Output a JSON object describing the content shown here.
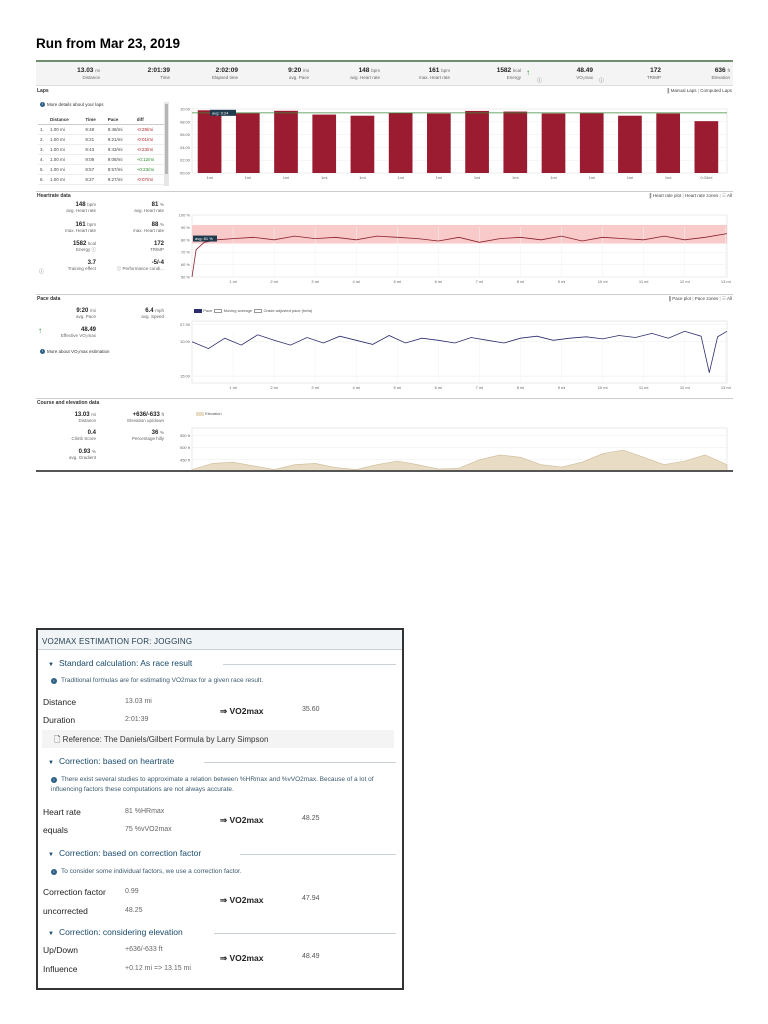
{
  "page_title": "Run from Mar 23, 2019",
  "summary": [
    {
      "value": "13.03",
      "unit": "mi",
      "label": "Distance"
    },
    {
      "value": "2:01:39",
      "unit": "",
      "label": "Time"
    },
    {
      "value": "2:02:09",
      "unit": "",
      "label": "Elapsed time"
    },
    {
      "value": "9:20",
      "unit": "/mi",
      "label": "avg. Pace"
    },
    {
      "value": "148",
      "unit": "bpm",
      "label": "avg. Heart rate"
    },
    {
      "value": "161",
      "unit": "bpm",
      "label": "max. Heart rate"
    },
    {
      "value": "1582",
      "unit": "kcal",
      "label": "Energy"
    },
    {
      "value": "48.49",
      "unit": "",
      "label": "VO₂max"
    },
    {
      "value": "172",
      "unit": "",
      "label": "TRIMP"
    },
    {
      "value": "636",
      "unit": "ft",
      "label": "Elevation"
    }
  ],
  "laps": {
    "title": "Laps",
    "more_link": "More details about your laps",
    "tabs": [
      "Manual Laps",
      "Computed Laps"
    ],
    "headers": [
      "Distance",
      "Time",
      "Pace",
      "diff"
    ],
    "rows": [
      {
        "n": "1.",
        "dist": "1.00 mi",
        "time": "9:48",
        "pace": "9:48/mi",
        "diff": "-0:28/mi",
        "sign": "neg"
      },
      {
        "n": "2.",
        "dist": "1.00 mi",
        "time": "9:21",
        "pace": "9:21/mi",
        "diff": "-0:01/mi",
        "sign": "neg"
      },
      {
        "n": "3.",
        "dist": "1.00 mi",
        "time": "9:43",
        "pace": "9:43/mi",
        "diff": "-0:23/mi",
        "sign": "neg"
      },
      {
        "n": "4.",
        "dist": "1.00 mi",
        "time": "9:08",
        "pace": "9:08/mi",
        "diff": "+0:12/mi",
        "sign": "pos"
      },
      {
        "n": "5.",
        "dist": "1.00 mi",
        "time": "8:57",
        "pace": "8:57/mi",
        "diff": "+0:23/mi",
        "sign": "pos"
      },
      {
        "n": "6.",
        "dist": "1.00 mi",
        "time": "9:27",
        "pace": "9:27/mi",
        "diff": "-0:07/mi",
        "sign": "neg"
      }
    ],
    "avg_label": "avg: 9:24"
  },
  "heartrate": {
    "title": "Heartrate data",
    "tabs": [
      "Heart rate plot",
      "Heart rate zones",
      "All"
    ],
    "avg_label": "avg: 81 %",
    "stats": [
      {
        "value": "148",
        "unit": "bpm",
        "label": "avg. Heart rate"
      },
      {
        "value": "81",
        "unit": "%",
        "label": "avg. Heart rate"
      },
      {
        "value": "161",
        "unit": "bpm",
        "label": "max. Heart rate"
      },
      {
        "value": "88",
        "unit": "%",
        "label": "max. Heart rate"
      },
      {
        "value": "1582",
        "unit": "kcal",
        "label": "Energy"
      },
      {
        "value": "172",
        "unit": "",
        "label": "TRIMP"
      },
      {
        "value": "3.7",
        "unit": "",
        "label": "Training effect"
      },
      {
        "value": "-5/-4",
        "unit": "",
        "label": "Performance condi..."
      }
    ]
  },
  "pace": {
    "title": "Pace data",
    "tabs": [
      "Pace plot",
      "Pace zones",
      "All"
    ],
    "legend": [
      "Pace",
      "Moving average",
      "Grade adjusted pace (beta)"
    ],
    "stats": [
      {
        "value": "9:20",
        "unit": "/mi",
        "label": "avg. Pace"
      },
      {
        "value": "6.4",
        "unit": "mph",
        "label": "avg. Speed"
      },
      {
        "value": "48.49",
        "unit": "",
        "label": "Effective VO₂max"
      }
    ],
    "more_link": "More about VO₂max estimation"
  },
  "course": {
    "title": "Course and elevation data",
    "legend": [
      "Elevation"
    ],
    "stats": [
      {
        "value": "13.03",
        "unit": "mi",
        "label": "Distance"
      },
      {
        "value": "+636/-633",
        "unit": "ft",
        "label": "Elevation up/down"
      },
      {
        "value": "0.4",
        "unit": "",
        "label": "Climb Score"
      },
      {
        "value": "36",
        "unit": "%",
        "label": "Percentage hilly"
      },
      {
        "value": "0.93",
        "unit": "%",
        "label": "avg. Gradient"
      }
    ]
  },
  "chart_data": [
    {
      "type": "bar",
      "name": "laps",
      "categories": [
        "1mi",
        "1mi",
        "1mi",
        "1mi",
        "1mi",
        "1mi",
        "1mi",
        "1mi",
        "1mi",
        "1mi",
        "1mi",
        "1mi",
        "1mi",
        "0.03mi"
      ],
      "values": [
        9.8,
        9.35,
        9.72,
        9.13,
        8.95,
        9.45,
        9.3,
        9.7,
        9.6,
        9.3,
        9.35,
        8.95,
        9.3,
        8.1
      ],
      "y_tick_labels": [
        "10:00",
        "08:00",
        "06:00",
        "04:00",
        "02:00",
        "00:00"
      ],
      "ylim": [
        0,
        10
      ],
      "avg_line": 9.4,
      "colors": {
        "bar": "#9b1b30",
        "avg": "#3a8a3a"
      }
    },
    {
      "type": "line",
      "name": "heart rate %",
      "x_tick_labels": [
        "1 mi",
        "2 mi",
        "3 mi",
        "4 mi",
        "5 mi",
        "6 mi",
        "7 mi",
        "8 mi",
        "9 mi",
        "10 mi",
        "11 mi",
        "12 mi",
        "13 mi"
      ],
      "y_tick_labels": [
        "100 %",
        "90 %",
        "80 %",
        "70 %",
        "60 %",
        "50 %"
      ],
      "ylim": [
        50,
        100
      ],
      "band": [
        77,
        92
      ],
      "x": [
        0,
        0.1,
        0.3,
        0.6,
        1,
        1.5,
        2,
        2.5,
        3,
        3.5,
        4,
        4.5,
        5,
        5.5,
        6,
        6.5,
        7,
        7.5,
        8,
        8.5,
        9,
        9.5,
        10,
        10.5,
        11,
        11.5,
        12,
        12.5,
        13.03
      ],
      "values": [
        50,
        72,
        78,
        80,
        81,
        82,
        80,
        83,
        81,
        82,
        80,
        83,
        82,
        81,
        79,
        82,
        78,
        81,
        82,
        80,
        83,
        79,
        82,
        81,
        80,
        83,
        80,
        82,
        85
      ],
      "colors": {
        "line": "#8a1f2c",
        "band": "#f8caca"
      }
    },
    {
      "type": "line",
      "name": "pace",
      "x_tick_labels": [
        "1 mi",
        "2 mi",
        "3 mi",
        "4 mi",
        "5 mi",
        "6 mi",
        "7 mi",
        "8 mi",
        "9 mi",
        "10 mi",
        "11 mi",
        "12 mi",
        "13 mi"
      ],
      "y_tick_labels": [
        "07:30",
        "10:00",
        "15:00"
      ],
      "ylim": [
        7,
        16
      ],
      "x": [
        0,
        0.4,
        0.8,
        1.2,
        1.6,
        2,
        2.4,
        2.8,
        3.2,
        3.6,
        4,
        4.4,
        4.8,
        5.2,
        5.6,
        6,
        6.4,
        6.8,
        7.2,
        7.6,
        8,
        8.4,
        8.8,
        9.2,
        9.6,
        10,
        10.4,
        10.8,
        11.2,
        11.6,
        12,
        12.4,
        12.6,
        12.8,
        13.03
      ],
      "values": [
        10,
        11,
        9.5,
        10.5,
        9,
        9.8,
        10.5,
        9.4,
        10.2,
        9.2,
        9.8,
        10.4,
        9.1,
        10.2,
        9.5,
        9.8,
        10.2,
        9.4,
        9.8,
        10.2,
        9.5,
        9.2,
        9.8,
        9.5,
        9.3,
        9.6,
        9.1,
        9.4,
        8.8,
        9.5,
        8.5,
        9.2,
        14.5,
        9.3,
        8.5
      ],
      "colors": {
        "line": "#2b2b6e"
      }
    },
    {
      "type": "area",
      "name": "elevation",
      "y_tick_labels": [
        "550 ft",
        "500 ft",
        "450 ft"
      ],
      "ylim": [
        400,
        580
      ],
      "x": [
        0,
        0.5,
        1,
        1.5,
        2,
        2.5,
        3,
        3.5,
        4,
        4.5,
        5,
        5.5,
        6,
        6.5,
        7,
        7.5,
        8,
        8.5,
        9,
        9.5,
        10,
        10.5,
        11,
        11.5,
        12,
        12.5,
        13.03
      ],
      "values": [
        410,
        435,
        440,
        425,
        410,
        430,
        435,
        418,
        410,
        430,
        445,
        430,
        412,
        415,
        450,
        470,
        460,
        430,
        420,
        440,
        475,
        490,
        460,
        430,
        445,
        470,
        430
      ],
      "colors": {
        "fill": "#e8dcc5",
        "stroke": "#cdbb98"
      }
    }
  ],
  "vo2": {
    "header": "VO2MAX ESTIMATION FOR: JOGGING",
    "sections": [
      {
        "title": "Standard calculation: As race result",
        "note": "Traditional formulas are for estimating VO2max for a given race result."
      },
      {
        "title": "Correction: based on heartrate",
        "note": "There exist several studies to approximate a relation between %HRmax and %vVO2max. Because of a lot of influencing factors these computations are not always accurate."
      },
      {
        "title": "Correction: based on correction factor",
        "note": "To consider some individual factors, we use a correction factor."
      },
      {
        "title": "Correction: considering elevation",
        "note": ""
      }
    ],
    "rows": [
      {
        "label": "Distance",
        "value": "13.03 mi"
      },
      {
        "label": "Duration",
        "value": "2:01:39"
      },
      {
        "label": "Heart rate",
        "value": "81 %HRmax"
      },
      {
        "label": "equals",
        "value": "75 %vVO2max"
      },
      {
        "label": "Correction factor",
        "value": "0.99"
      },
      {
        "label": "uncorrected",
        "value": "48.25"
      },
      {
        "label": "Up/Down",
        "value": "+636/-633 ft"
      },
      {
        "label": "Influence",
        "value": "+0.12 mi => 13.15 mi"
      }
    ],
    "result_label": "⇒ VO2max",
    "results": [
      "35.60",
      "48.25",
      "47.94",
      "48.49"
    ],
    "reference": "Reference: The Daniels/Gilbert Formula by Larry Simpson"
  }
}
